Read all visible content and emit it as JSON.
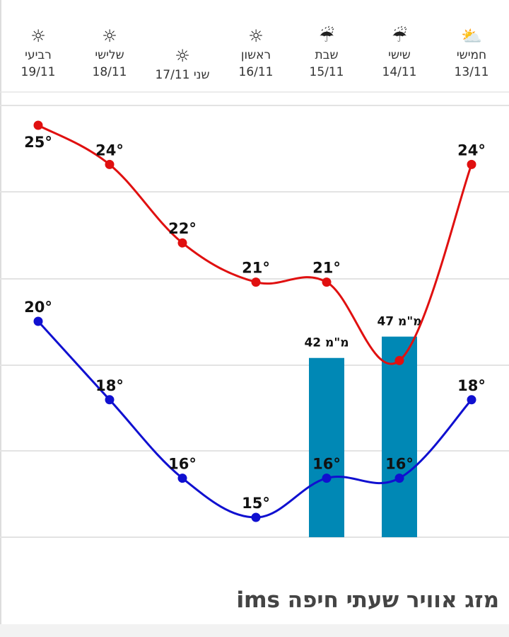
{
  "chart_data": {
    "type": "line",
    "title": "מזג אוויר שעתי חיפה ims",
    "days": [
      {
        "name": "חמישי",
        "date": "13/11",
        "icon": "partly-cloudy-icon",
        "max": 24,
        "min": 18,
        "rain": null
      },
      {
        "name": "שישי",
        "date": "14/11",
        "icon": "rain-icon",
        "max": 19,
        "min": 16,
        "rain": 47
      },
      {
        "name": "שבת",
        "date": "15/11",
        "icon": "rain-icon",
        "max": 21,
        "min": 16,
        "rain": 42
      },
      {
        "name": "ראשון",
        "date": "16/11",
        "icon": "sun-icon",
        "max": 21,
        "min": 15,
        "rain": null
      },
      {
        "name": "שני",
        "date": "17/11",
        "icon": "sun-icon",
        "max": 22,
        "min": 16,
        "rain": null
      },
      {
        "name": "שלישי",
        "date": "18/11",
        "icon": "sun-icon",
        "max": 24,
        "min": 18,
        "rain": null
      },
      {
        "name": "רביעי",
        "date": "19/11",
        "icon": "sun-icon",
        "max": 25,
        "min": 20,
        "rain": null
      }
    ],
    "max_labels": [
      "24°",
      "",
      "21°",
      "21°",
      "22°",
      "24°",
      "25°"
    ],
    "min_labels": [
      "18°",
      "16°",
      "16°",
      "15°",
      "16°",
      "18°",
      "20°"
    ],
    "rain_labels": [
      "",
      "47 מ\"מ",
      "42 מ\"מ",
      "",
      "",
      "",
      ""
    ],
    "series": [
      {
        "name": "max",
        "color": "#e01010"
      },
      {
        "name": "min",
        "color": "#1010d0"
      }
    ],
    "rain_color": "#0088b5",
    "grid": true
  },
  "footer": {
    "title": "מזג אוויר שעתי חיפה ims"
  }
}
